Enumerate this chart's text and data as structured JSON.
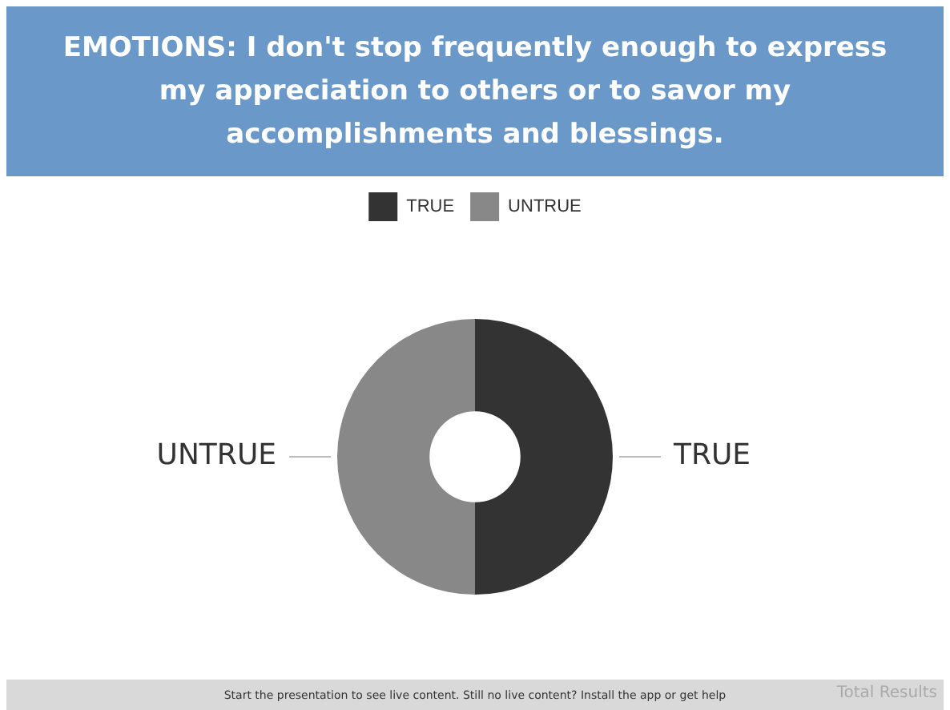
{
  "chart_data": {
    "type": "donut",
    "title": "EMOTIONS: I don't stop frequently enough to express my appreciation to others or to savor my accomplishments and blessings.",
    "categories": [
      "TRUE",
      "UNTRUE"
    ],
    "values": [
      50,
      50
    ],
    "colors": [
      "#333333",
      "#888888"
    ],
    "legend": "top",
    "annotations": [
      "Start the presentation to see live content. Still no live content? Install the app or get help",
      "Total Results"
    ]
  }
}
